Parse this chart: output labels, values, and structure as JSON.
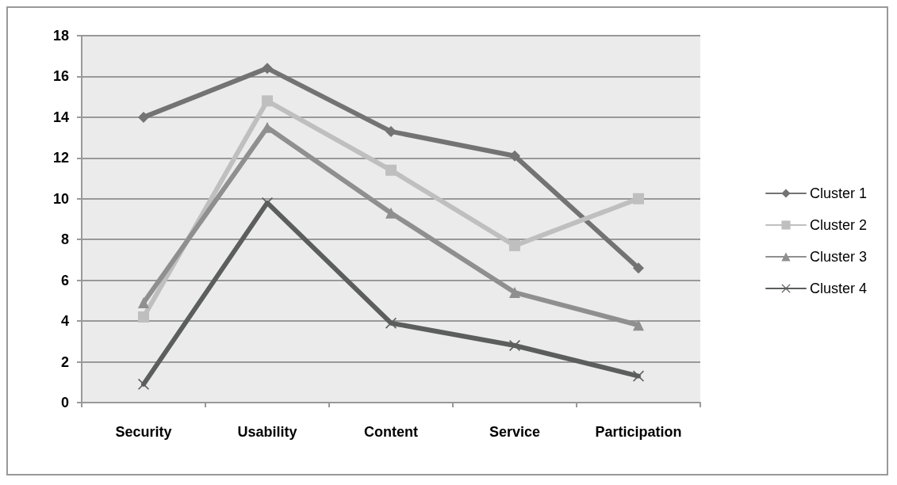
{
  "chart_data": {
    "type": "line",
    "categories": [
      "Security",
      "Usability",
      "Content",
      "Service",
      "Participation"
    ],
    "series": [
      {
        "name": "Cluster 1",
        "color": "#737373",
        "marker": "diamond",
        "values": [
          14.0,
          16.4,
          13.3,
          12.1,
          6.6
        ]
      },
      {
        "name": "Cluster 2",
        "color": "#bfbfbf",
        "marker": "square",
        "values": [
          4.2,
          14.8,
          11.4,
          7.7,
          10.0
        ]
      },
      {
        "name": "Cluster 3",
        "color": "#8f8f8f",
        "marker": "triangle",
        "values": [
          4.9,
          13.5,
          9.3,
          5.4,
          3.8
        ]
      },
      {
        "name": "Cluster 4",
        "color": "#5c5e5e",
        "marker": "cross",
        "values": [
          0.9,
          9.8,
          3.9,
          2.8,
          1.3
        ]
      }
    ],
    "ylim": [
      0,
      18
    ],
    "yticks": [
      0,
      2,
      4,
      6,
      8,
      10,
      12,
      14,
      16,
      18
    ],
    "grid": "y",
    "legend": "right",
    "line_style": "solid"
  }
}
